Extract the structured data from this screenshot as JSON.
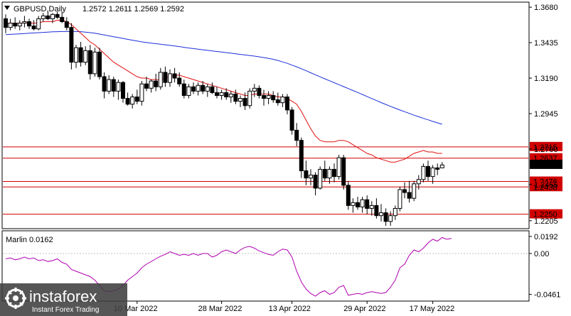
{
  "header": {
    "symbol": "GBPUSD,Daily",
    "ohlc": "1.2572 1.2611 1.2569 1.2592"
  },
  "oscillator": {
    "title": "Marlin 0.0162"
  },
  "watermark": {
    "brand": "instaforex",
    "tagline": "Instant Forex Trading"
  },
  "colors": {
    "background": "#ffffff",
    "candle_outline": "#000000",
    "ma_fast": "#e01010",
    "ma_slow": "#1c2fd8",
    "level": "#d00000",
    "oscillator": "#b000b0"
  },
  "chart_data": {
    "type": "candlestick",
    "y_axis_ticks": [
      "1.3680",
      "1.3435",
      "1.3190",
      "1.2945",
      "1.2700",
      "1.2455",
      "1.2205"
    ],
    "ylim": [
      1.2155,
      1.371
    ],
    "x_axis_labels": [
      "10 Mar 2022",
      "28 Mar 2022",
      "13 Apr 2022",
      "29 Apr 2022",
      "17 May 2022"
    ],
    "levels": [
      1.2715,
      1.2637,
      1.2476,
      1.2438,
      1.225
    ],
    "current_price": "1.2592",
    "candles": [
      [
        1.36,
        1.363,
        1.35,
        1.354
      ],
      [
        1.354,
        1.36,
        1.352,
        1.357
      ],
      [
        1.357,
        1.361,
        1.353,
        1.355
      ],
      [
        1.355,
        1.359,
        1.352,
        1.357
      ],
      [
        1.357,
        1.362,
        1.354,
        1.358
      ],
      [
        1.358,
        1.36,
        1.353,
        1.355
      ],
      [
        1.355,
        1.359,
        1.352,
        1.353
      ],
      [
        1.353,
        1.362,
        1.352,
        1.36
      ],
      [
        1.36,
        1.364,
        1.358,
        1.362
      ],
      [
        1.362,
        1.365,
        1.359,
        1.36
      ],
      [
        1.36,
        1.364,
        1.357,
        1.363
      ],
      [
        1.363,
        1.365,
        1.36,
        1.361
      ],
      [
        1.361,
        1.365,
        1.357,
        1.358
      ],
      [
        1.358,
        1.361,
        1.352,
        1.354
      ],
      [
        1.354,
        1.357,
        1.325,
        1.33
      ],
      [
        1.33,
        1.342,
        1.326,
        1.34
      ],
      [
        1.34,
        1.344,
        1.327,
        1.33
      ],
      [
        1.33,
        1.341,
        1.328,
        1.338
      ],
      [
        1.338,
        1.342,
        1.318,
        1.322
      ],
      [
        1.322,
        1.34,
        1.32,
        1.337
      ],
      [
        1.337,
        1.34,
        1.318,
        1.32
      ],
      [
        1.32,
        1.323,
        1.305,
        1.31
      ],
      [
        1.31,
        1.321,
        1.308,
        1.318
      ],
      [
        1.318,
        1.32,
        1.306,
        1.31
      ],
      [
        1.31,
        1.318,
        1.304,
        1.316
      ],
      [
        1.316,
        1.317,
        1.302,
        1.305
      ],
      [
        1.305,
        1.309,
        1.3,
        1.301
      ],
      [
        1.301,
        1.308,
        1.298,
        1.306
      ],
      [
        1.306,
        1.311,
        1.301,
        1.303
      ],
      [
        1.303,
        1.317,
        1.3,
        1.315
      ],
      [
        1.315,
        1.32,
        1.31,
        1.312
      ],
      [
        1.312,
        1.318,
        1.309,
        1.317
      ],
      [
        1.317,
        1.322,
        1.31,
        1.313
      ],
      [
        1.313,
        1.326,
        1.311,
        1.323
      ],
      [
        1.323,
        1.327,
        1.313,
        1.316
      ],
      [
        1.316,
        1.325,
        1.313,
        1.322
      ],
      [
        1.322,
        1.326,
        1.316,
        1.319
      ],
      [
        1.319,
        1.323,
        1.313,
        1.315
      ],
      [
        1.315,
        1.318,
        1.305,
        1.307
      ],
      [
        1.307,
        1.315,
        1.305,
        1.313
      ],
      [
        1.313,
        1.316,
        1.308,
        1.31
      ],
      [
        1.31,
        1.316,
        1.307,
        1.314
      ],
      [
        1.314,
        1.317,
        1.308,
        1.31
      ],
      [
        1.31,
        1.315,
        1.306,
        1.313
      ],
      [
        1.313,
        1.316,
        1.308,
        1.309
      ],
      [
        1.309,
        1.313,
        1.305,
        1.307
      ],
      [
        1.307,
        1.311,
        1.304,
        1.309
      ],
      [
        1.309,
        1.312,
        1.304,
        1.306
      ],
      [
        1.306,
        1.31,
        1.302,
        1.308
      ],
      [
        1.308,
        1.311,
        1.301,
        1.303
      ],
      [
        1.303,
        1.307,
        1.299,
        1.305
      ],
      [
        1.305,
        1.309,
        1.297,
        1.3
      ],
      [
        1.3,
        1.312,
        1.298,
        1.31
      ],
      [
        1.31,
        1.315,
        1.306,
        1.312
      ],
      [
        1.312,
        1.314,
        1.305,
        1.307
      ],
      [
        1.307,
        1.311,
        1.3,
        1.305
      ],
      [
        1.305,
        1.31,
        1.301,
        1.307
      ],
      [
        1.307,
        1.31,
        1.302,
        1.304
      ],
      [
        1.304,
        1.309,
        1.3,
        1.302
      ],
      [
        1.302,
        1.308,
        1.299,
        1.306
      ],
      [
        1.306,
        1.308,
        1.294,
        1.297
      ],
      [
        1.297,
        1.299,
        1.28,
        1.283
      ],
      [
        1.283,
        1.288,
        1.272,
        1.276
      ],
      [
        1.276,
        1.278,
        1.25,
        1.255
      ],
      [
        1.255,
        1.262,
        1.245,
        1.25
      ],
      [
        1.25,
        1.256,
        1.245,
        1.252
      ],
      [
        1.252,
        1.254,
        1.238,
        1.243
      ],
      [
        1.243,
        1.258,
        1.242,
        1.256
      ],
      [
        1.256,
        1.262,
        1.248,
        1.25
      ],
      [
        1.25,
        1.258,
        1.246,
        1.256
      ],
      [
        1.256,
        1.26,
        1.247,
        1.251
      ],
      [
        1.251,
        1.266,
        1.249,
        1.264
      ],
      [
        1.264,
        1.266,
        1.242,
        1.245
      ],
      [
        1.245,
        1.248,
        1.228,
        1.231
      ],
      [
        1.231,
        1.236,
        1.226,
        1.233
      ],
      [
        1.233,
        1.237,
        1.228,
        1.23
      ],
      [
        1.23,
        1.237,
        1.226,
        1.235
      ],
      [
        1.235,
        1.238,
        1.225,
        1.229
      ],
      [
        1.229,
        1.234,
        1.224,
        1.231
      ],
      [
        1.231,
        1.236,
        1.222,
        1.224
      ],
      [
        1.224,
        1.232,
        1.22,
        1.226
      ],
      [
        1.226,
        1.229,
        1.217,
        1.22
      ],
      [
        1.22,
        1.227,
        1.217,
        1.224
      ],
      [
        1.224,
        1.231,
        1.221,
        1.229
      ],
      [
        1.229,
        1.244,
        1.227,
        1.242
      ],
      [
        1.242,
        1.247,
        1.236,
        1.24
      ],
      [
        1.24,
        1.248,
        1.233,
        1.236
      ],
      [
        1.236,
        1.248,
        1.234,
        1.246
      ],
      [
        1.246,
        1.252,
        1.242,
        1.249
      ],
      [
        1.249,
        1.26,
        1.247,
        1.258
      ],
      [
        1.258,
        1.262,
        1.248,
        1.251
      ],
      [
        1.251,
        1.259,
        1.246,
        1.257
      ],
      [
        1.257,
        1.26,
        1.252,
        1.256
      ],
      [
        1.257,
        1.261,
        1.257,
        1.259
      ]
    ],
    "ma_fast": [
      1.357,
      1.357,
      1.357,
      1.357,
      1.357,
      1.357,
      1.357,
      1.357,
      1.358,
      1.358,
      1.358,
      1.359,
      1.359,
      1.358,
      1.356,
      1.353,
      1.35,
      1.347,
      1.344,
      1.342,
      1.339,
      1.336,
      1.333,
      1.33,
      1.328,
      1.326,
      1.324,
      1.322,
      1.32,
      1.319,
      1.319,
      1.318,
      1.318,
      1.318,
      1.319,
      1.32,
      1.321,
      1.321,
      1.32,
      1.319,
      1.318,
      1.317,
      1.316,
      1.315,
      1.314,
      1.313,
      1.312,
      1.311,
      1.31,
      1.309,
      1.308,
      1.307,
      1.307,
      1.308,
      1.308,
      1.308,
      1.308,
      1.307,
      1.306,
      1.306,
      1.305,
      1.303,
      1.301,
      1.296,
      1.29,
      1.284,
      1.279,
      1.276,
      1.275,
      1.275,
      1.275,
      1.276,
      1.276,
      1.275,
      1.273,
      1.271,
      1.269,
      1.267,
      1.266,
      1.264,
      1.263,
      1.262,
      1.261,
      1.261,
      1.262,
      1.263,
      1.265,
      1.267,
      1.268,
      1.269,
      1.268,
      1.268,
      1.267,
      1.267
    ],
    "ma_slow": [
      1.349,
      1.3492,
      1.3494,
      1.3496,
      1.3498,
      1.35,
      1.3502,
      1.3504,
      1.3506,
      1.3508,
      1.351,
      1.3511,
      1.3512,
      1.3512,
      1.3512,
      1.3512,
      1.3511,
      1.3508,
      1.3504,
      1.35,
      1.3494,
      1.3488,
      1.3482,
      1.3476,
      1.347,
      1.3464,
      1.3458,
      1.3452,
      1.3446,
      1.344,
      1.3436,
      1.3432,
      1.3428,
      1.3424,
      1.342,
      1.3416,
      1.3412,
      1.3408,
      1.3403,
      1.3398,
      1.3394,
      1.339,
      1.3386,
      1.3382,
      1.3378,
      1.3374,
      1.337,
      1.3366,
      1.3362,
      1.3358,
      1.3354,
      1.335,
      1.3346,
      1.3342,
      1.3337,
      1.3332,
      1.3326,
      1.332,
      1.3312,
      1.3302,
      1.3292,
      1.328,
      1.3268,
      1.3255,
      1.3241,
      1.3227,
      1.3213,
      1.3199,
      1.3185,
      1.3172,
      1.3158,
      1.3145,
      1.3131,
      1.3118,
      1.3104,
      1.3091,
      1.3077,
      1.3063,
      1.3049,
      1.3035,
      1.3021,
      1.3008,
      1.2995,
      1.2982,
      1.297,
      1.2958,
      1.2946,
      1.2934,
      1.2923,
      1.2912,
      1.2902,
      1.2891,
      1.2881,
      1.2871
    ],
    "oscillator": {
      "yticks": [
        "0.0192",
        "0.00",
        "-0.0461"
      ],
      "ylim": [
        -0.052,
        0.024
      ],
      "values": [
        -0.006,
        -0.005,
        -0.007,
        -0.006,
        -0.004,
        -0.006,
        -0.005,
        -0.008,
        -0.007,
        -0.009,
        -0.008,
        -0.006,
        -0.01,
        -0.012,
        -0.018,
        -0.02,
        -0.022,
        -0.024,
        -0.026,
        -0.03,
        -0.036,
        -0.042,
        -0.043,
        -0.042,
        -0.04,
        -0.036,
        -0.03,
        -0.026,
        -0.022,
        -0.016,
        -0.012,
        -0.009,
        -0.006,
        -0.003,
        -0.001,
        0.002,
        0.0,
        -0.002,
        -0.001,
        -0.002,
        0.0,
        -0.002,
        0.0,
        0.0,
        -0.004,
        -0.002,
        0.002,
        0.004,
        0.002,
        0.0,
        0.004,
        0.007,
        0.008,
        0.006,
        0.003,
        0.001,
        -0.001,
        -0.002,
        0.002,
        0.005,
        0.004,
        -0.004,
        -0.02,
        -0.032,
        -0.04,
        -0.045,
        -0.048,
        -0.044,
        -0.042,
        -0.046,
        -0.044,
        -0.038,
        -0.036,
        -0.047,
        -0.046,
        -0.045,
        -0.046,
        -0.044,
        -0.043,
        -0.044,
        -0.045,
        -0.044,
        -0.038,
        -0.03,
        -0.016,
        -0.012,
        -0.002,
        0.004,
        0.002,
        0.006,
        0.012,
        0.016,
        0.014,
        0.018,
        0.016,
        0.017
      ]
    }
  }
}
